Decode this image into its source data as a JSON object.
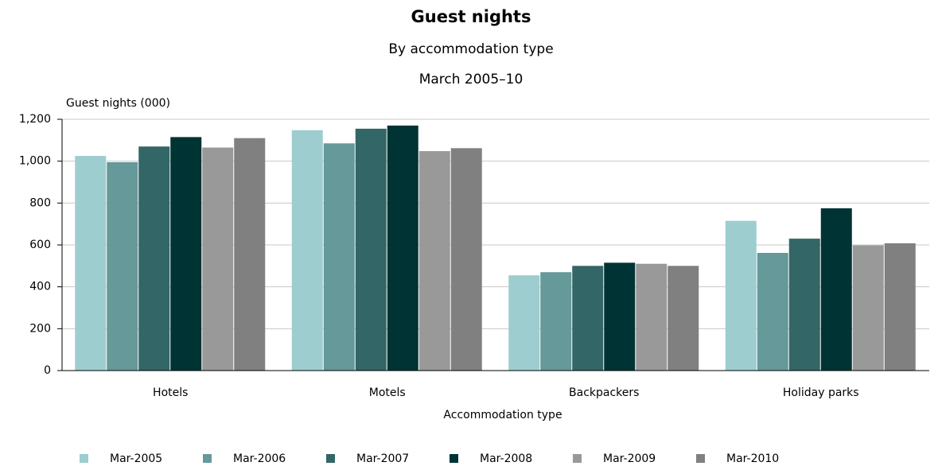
{
  "chart_data": {
    "type": "bar",
    "title": "Guest nights",
    "subtitle": "By accommodation type",
    "subtitle2": "March 2005–10",
    "y_label": "Guest nights (000)",
    "x_label": "Accommodation type",
    "categories": [
      "Hotels",
      "Motels",
      "Backpackers",
      "Holiday parks"
    ],
    "series": [
      {
        "name": "Mar-2005",
        "color": "#9dcdcf",
        "values": [
          1025,
          1148,
          455,
          715
        ]
      },
      {
        "name": "Mar-2006",
        "color": "#669999",
        "values": [
          995,
          1085,
          470,
          562
        ]
      },
      {
        "name": "Mar-2007",
        "color": "#336666",
        "values": [
          1070,
          1155,
          500,
          630
        ]
      },
      {
        "name": "Mar-2008",
        "color": "#003333",
        "values": [
          1115,
          1170,
          515,
          775
        ]
      },
      {
        "name": "Mar-2009",
        "color": "#999999",
        "values": [
          1065,
          1048,
          510,
          598
        ]
      },
      {
        "name": "Mar-2010",
        "color": "#808080",
        "values": [
          1110,
          1062,
          500,
          608
        ]
      }
    ],
    "ylim": [
      0,
      1200
    ],
    "yticks": [
      0,
      200,
      400,
      600,
      800,
      {
        "value": 1000,
        "label": "1,000"
      },
      {
        "value": 1200,
        "label": "1,200"
      }
    ],
    "grid": true,
    "legend": "bottom"
  }
}
